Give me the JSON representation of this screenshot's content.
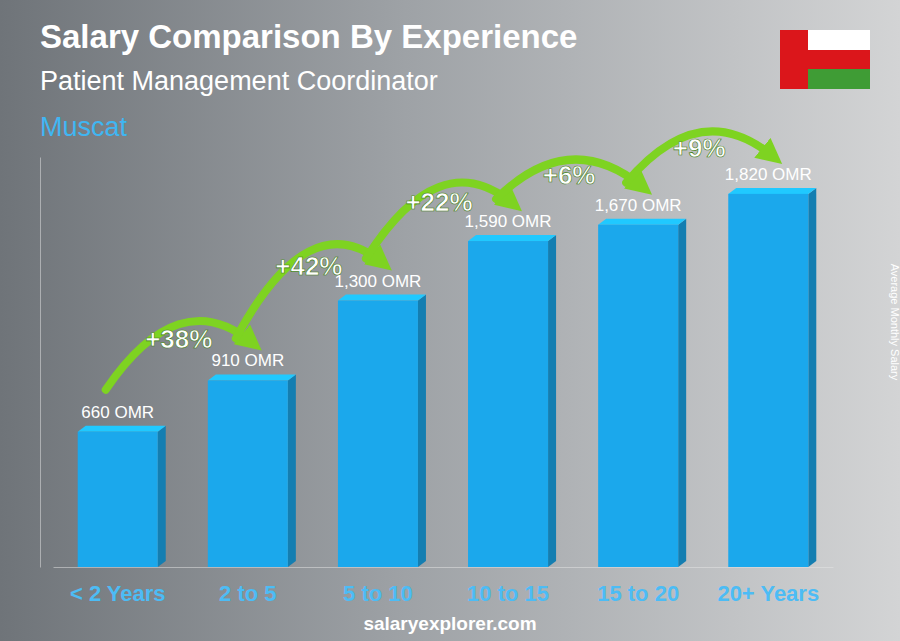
{
  "chart_data": {
    "type": "bar",
    "title": "Salary Comparison By Experience",
    "subtitle": "Patient Management Coordinator",
    "location": "Muscat",
    "y_label": "Average Monthly Salary",
    "source": "salaryexplorer.com",
    "categories": [
      "< 2 Years",
      "2 to 5",
      "5 to 10",
      "10 to 15",
      "15 to 20",
      "20+ Years"
    ],
    "values": [
      660,
      910,
      1300,
      1590,
      1670,
      1820
    ],
    "value_labels": [
      "660 OMR",
      "910 OMR",
      "1,300 OMR",
      "1,590 OMR",
      "1,670 OMR",
      "1,820 OMR"
    ],
    "annotations": [
      "+38%",
      "+42%",
      "+22%",
      "+6%",
      "+9%"
    ],
    "color": "#1ba8ec",
    "ylim": [
      0,
      2000
    ],
    "yticks": [],
    "grid": false,
    "data_labels": true,
    "tick_labels": "x"
  }
}
